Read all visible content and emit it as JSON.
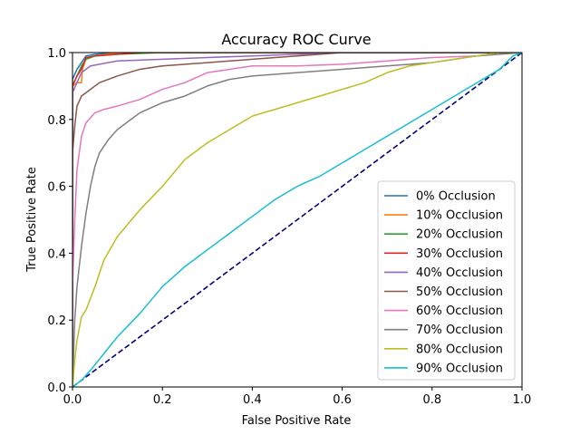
{
  "chart_data": {
    "type": "line",
    "title": "Accuracy ROC Curve",
    "xlabel": "False Positive Rate",
    "ylabel": "True Positive Rate",
    "xlim": [
      0.0,
      1.0
    ],
    "ylim": [
      0.0,
      1.0
    ],
    "xticks": [
      "0.0",
      "0.2",
      "0.4",
      "0.6",
      "0.8",
      "1.0"
    ],
    "yticks": [
      "0.0",
      "0.2",
      "0.4",
      "0.6",
      "0.8",
      "1.0"
    ],
    "grid": false,
    "legend_position": "lower right",
    "diagonal": {
      "style": "dashed",
      "color": "#000080",
      "x": [
        0,
        1
      ],
      "y": [
        0,
        1
      ]
    },
    "series": [
      {
        "name": "0% Occlusion",
        "color": "#1f77b4",
        "x": [
          0,
          0,
          0.01,
          0.02,
          0.03,
          0.05,
          0.1,
          0.2,
          1.0
        ],
        "y": [
          0,
          0.92,
          0.95,
          0.97,
          0.99,
          0.995,
          1.0,
          1.0,
          1.0
        ]
      },
      {
        "name": "10% Occlusion",
        "color": "#ff7f0e",
        "x": [
          0,
          0,
          0.01,
          0.02,
          0.022,
          0.03,
          0.05,
          0.1,
          0.2,
          1.0
        ],
        "y": [
          0,
          0.9,
          0.91,
          0.91,
          0.95,
          0.98,
          0.99,
          1.0,
          1.0,
          1.0
        ]
      },
      {
        "name": "20% Occlusion",
        "color": "#2ca02c",
        "x": [
          0,
          0,
          0.01,
          0.02,
          0.03,
          0.05,
          0.1,
          0.2,
          1.0
        ],
        "y": [
          0,
          0.9,
          0.93,
          0.96,
          0.98,
          0.99,
          0.995,
          1.0,
          1.0
        ]
      },
      {
        "name": "30% Occlusion",
        "color": "#d62728",
        "x": [
          0,
          0,
          0.01,
          0.02,
          0.03,
          0.05,
          0.1,
          0.15,
          0.3,
          1.0
        ],
        "y": [
          0,
          0.9,
          0.93,
          0.95,
          0.985,
          0.99,
          0.995,
          1.0,
          1.0,
          1.0
        ]
      },
      {
        "name": "40% Occlusion",
        "color": "#9467bd",
        "x": [
          0,
          0,
          0.01,
          0.02,
          0.04,
          0.06,
          0.1,
          0.2,
          0.3,
          0.4,
          0.5,
          0.6,
          0.7,
          0.8,
          1.0
        ],
        "y": [
          0,
          0.88,
          0.91,
          0.94,
          0.96,
          0.965,
          0.975,
          0.98,
          0.985,
          0.99,
          0.995,
          1.0,
          1.0,
          1.0,
          1.0
        ]
      },
      {
        "name": "50% Occlusion",
        "color": "#8c564b",
        "x": [
          0,
          0,
          0.005,
          0.01,
          0.02,
          0.04,
          0.06,
          0.1,
          0.15,
          0.2,
          0.3,
          0.4,
          0.5,
          0.6,
          0.7,
          0.8,
          1.0
        ],
        "y": [
          0,
          0.7,
          0.78,
          0.84,
          0.87,
          0.89,
          0.91,
          0.93,
          0.95,
          0.96,
          0.97,
          0.98,
          0.99,
          1.0,
          1.0,
          1.0,
          1.0
        ]
      },
      {
        "name": "60% Occlusion",
        "color": "#e377c2",
        "x": [
          0,
          0,
          0.005,
          0.01,
          0.02,
          0.03,
          0.05,
          0.07,
          0.1,
          0.15,
          0.2,
          0.25,
          0.3,
          0.35,
          0.4,
          0.5,
          0.6,
          0.7,
          0.8,
          0.9,
          0.95,
          1.0
        ],
        "y": [
          0,
          0.3,
          0.5,
          0.65,
          0.75,
          0.79,
          0.82,
          0.83,
          0.84,
          0.86,
          0.89,
          0.91,
          0.94,
          0.95,
          0.96,
          0.96,
          0.965,
          0.975,
          0.985,
          0.99,
          1.0,
          1.0
        ]
      },
      {
        "name": "70% Occlusion",
        "color": "#7f7f7f",
        "x": [
          0,
          0.005,
          0.01,
          0.02,
          0.03,
          0.04,
          0.05,
          0.06,
          0.08,
          0.1,
          0.15,
          0.2,
          0.25,
          0.3,
          0.35,
          0.4,
          0.5,
          0.6,
          0.7,
          0.8,
          0.9,
          1.0
        ],
        "y": [
          0,
          0.2,
          0.3,
          0.42,
          0.52,
          0.6,
          0.66,
          0.7,
          0.74,
          0.77,
          0.82,
          0.85,
          0.87,
          0.9,
          0.92,
          0.93,
          0.94,
          0.95,
          0.96,
          0.97,
          0.99,
          1.0
        ]
      },
      {
        "name": "80% Occlusion",
        "color": "#bcbd22",
        "x": [
          0,
          0.005,
          0.01,
          0.02,
          0.03,
          0.05,
          0.07,
          0.1,
          0.15,
          0.2,
          0.25,
          0.3,
          0.35,
          0.4,
          0.45,
          0.5,
          0.55,
          0.6,
          0.65,
          0.7,
          0.75,
          0.8,
          0.85,
          0.9,
          0.95,
          1.0
        ],
        "y": [
          0,
          0.08,
          0.14,
          0.21,
          0.23,
          0.3,
          0.38,
          0.45,
          0.53,
          0.6,
          0.68,
          0.73,
          0.77,
          0.81,
          0.83,
          0.85,
          0.87,
          0.89,
          0.91,
          0.94,
          0.96,
          0.97,
          0.98,
          0.99,
          1.0,
          1.0
        ]
      },
      {
        "name": "90% Occlusion",
        "color": "#17becf",
        "x": [
          0,
          0.02,
          0.04,
          0.07,
          0.1,
          0.15,
          0.2,
          0.25,
          0.3,
          0.35,
          0.4,
          0.45,
          0.5,
          0.55,
          0.6,
          0.65,
          0.7,
          0.75,
          0.8,
          0.85,
          0.9,
          0.95,
          0.98,
          1.0
        ],
        "y": [
          0,
          0.02,
          0.05,
          0.1,
          0.15,
          0.22,
          0.3,
          0.36,
          0.41,
          0.46,
          0.51,
          0.56,
          0.6,
          0.63,
          0.67,
          0.71,
          0.75,
          0.79,
          0.83,
          0.87,
          0.91,
          0.95,
          0.99,
          1.0
        ]
      }
    ]
  }
}
